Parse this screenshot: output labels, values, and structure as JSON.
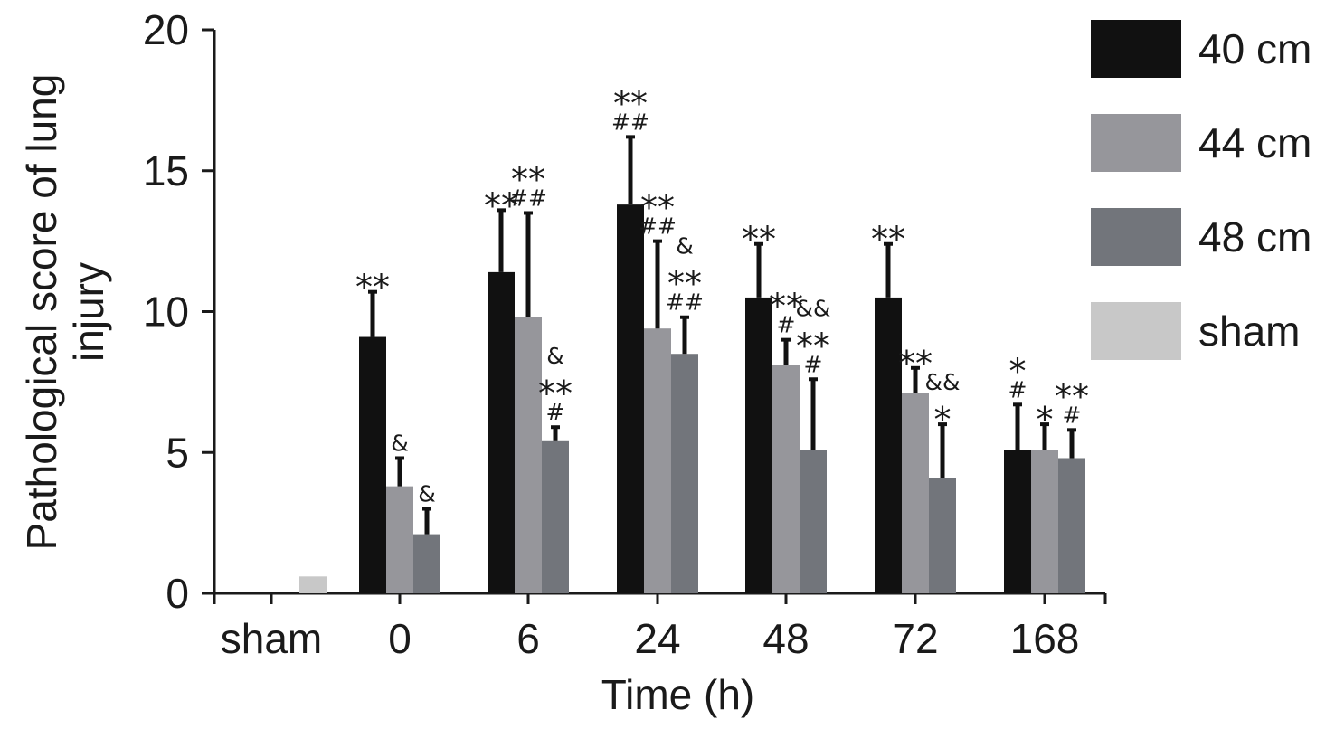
{
  "chart_data": {
    "type": "bar",
    "xlabel": "Time (h)",
    "ylabel": "Pathological score of lung injury",
    "ylim": [
      0,
      20
    ],
    "yticks": [
      0,
      5,
      10,
      15,
      20
    ],
    "categories": [
      "sham",
      "0",
      "6",
      "24",
      "48",
      "72",
      "168"
    ],
    "legend_position": "right",
    "colors": {
      "40 cm": "#111111",
      "44 cm": "#96969b",
      "48 cm": "#72757b",
      "sham": "#c8c8c8"
    },
    "series": [
      {
        "name": "40 cm",
        "values": [
          null,
          9.1,
          11.4,
          13.8,
          10.5,
          10.5,
          5.1
        ],
        "errors": [
          null,
          1.6,
          2.2,
          2.4,
          1.9,
          1.9,
          1.6
        ],
        "annotations": [
          null,
          [
            "**"
          ],
          [
            "**"
          ],
          [
            "**",
            "##"
          ],
          [
            "**"
          ],
          [
            "**"
          ],
          [
            "*",
            "#"
          ]
        ]
      },
      {
        "name": "44 cm",
        "values": [
          null,
          3.8,
          9.8,
          9.4,
          8.1,
          7.1,
          5.1
        ],
        "errors": [
          null,
          1.0,
          3.7,
          3.1,
          0.9,
          0.9,
          0.9
        ],
        "annotations": [
          null,
          [
            "&"
          ],
          [
            "**",
            "##"
          ],
          [
            "**",
            "##"
          ],
          [
            "**",
            "#"
          ],
          [
            "**"
          ],
          [
            "*"
          ]
        ]
      },
      {
        "name": "48 cm",
        "values": [
          null,
          2.1,
          5.4,
          8.5,
          5.1,
          4.1,
          4.8
        ],
        "errors": [
          null,
          0.9,
          0.5,
          1.3,
          2.5,
          1.9,
          1.0
        ],
        "annotations": [
          null,
          [
            "&"
          ],
          [
            "&",
            "**",
            "#"
          ],
          [
            "&",
            "**",
            "##"
          ],
          [
            "&&",
            "**",
            "#"
          ],
          [
            "&&",
            "*"
          ],
          [
            "**",
            "#"
          ]
        ]
      },
      {
        "name": "sham",
        "values": [
          0.6,
          null,
          null,
          null,
          null,
          null,
          null
        ],
        "errors": [
          null,
          null,
          null,
          null,
          null,
          null,
          null
        ],
        "annotations": [
          null,
          null,
          null,
          null,
          null,
          null,
          null
        ]
      }
    ]
  }
}
